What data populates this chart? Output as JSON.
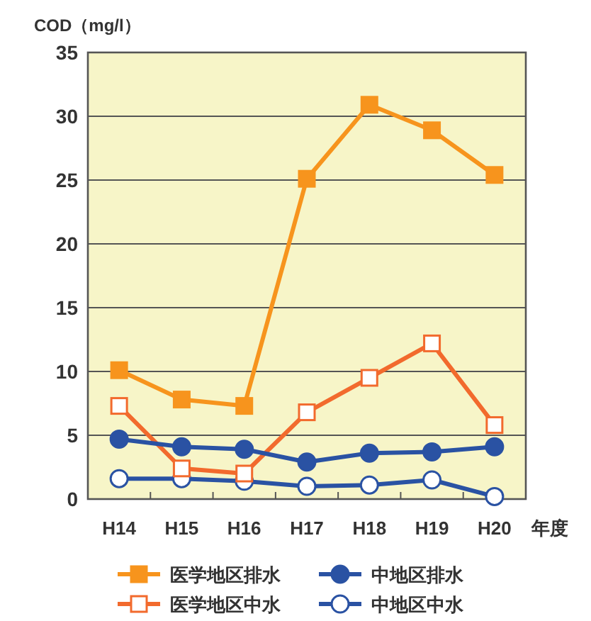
{
  "chart_data": {
    "type": "line",
    "ylabel": "COD（mg/l）",
    "xlabel": "年度",
    "categories": [
      "H14",
      "H15",
      "H16",
      "H17",
      "H18",
      "H19",
      "H20"
    ],
    "ylim": [
      0,
      35
    ],
    "yticks": [
      0,
      5,
      10,
      15,
      20,
      25,
      30,
      35
    ],
    "grid": "y",
    "legend": "bottom",
    "series": [
      {
        "name": "医学地区排水",
        "color": "#f7941d",
        "marker": "square",
        "values": [
          10.1,
          7.8,
          7.3,
          25.1,
          30.9,
          28.9,
          25.4
        ]
      },
      {
        "name": "医学地区中水",
        "color": "#f26a2d",
        "marker": "square",
        "values": [
          7.3,
          2.4,
          2.0,
          6.8,
          9.5,
          12.2,
          5.8
        ]
      },
      {
        "name": "中地区排水",
        "color": "#2a52a3",
        "marker": "circle",
        "values": [
          4.7,
          4.1,
          3.9,
          2.9,
          3.6,
          3.7,
          4.1
        ]
      },
      {
        "name": "中地区中水",
        "color": "#2a52a3",
        "marker": "circle",
        "values": [
          1.6,
          1.6,
          1.4,
          1.0,
          1.1,
          1.5,
          0.2
        ]
      }
    ]
  }
}
